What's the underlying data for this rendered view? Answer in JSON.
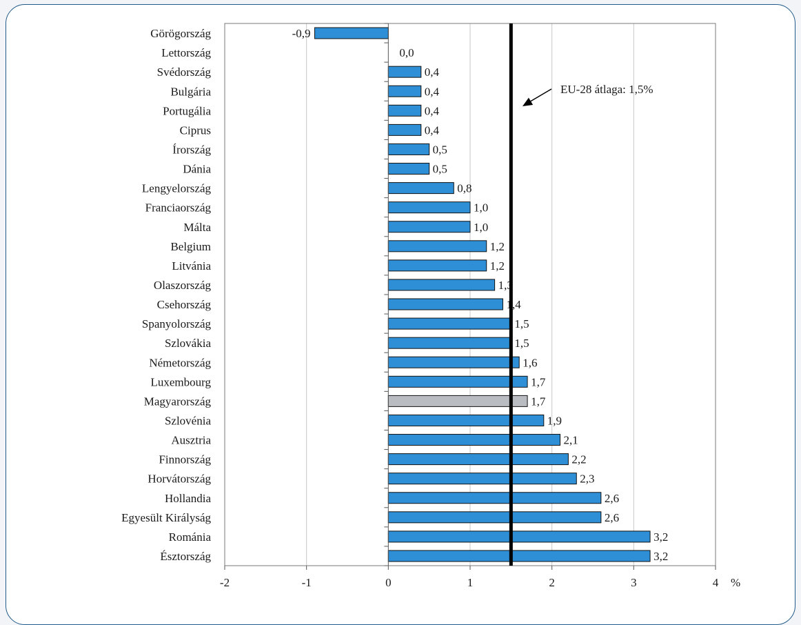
{
  "chart_data": {
    "type": "bar",
    "orientation": "horizontal",
    "categories": [
      "Görögország",
      "Lettország",
      "Svédország",
      "Bulgária",
      "Portugália",
      "Ciprus",
      "Írország",
      "Dánia",
      "Lengyelország",
      "Franciaország",
      "Málta",
      "Belgium",
      "Litvánia",
      "Olaszország",
      "Csehország",
      "Spanyolország",
      "Szlovákia",
      "Németország",
      "Luxembourg",
      "Magyarország",
      "Szlovénia",
      "Ausztria",
      "Finnország",
      "Horvátország",
      "Hollandia",
      "Egyesült Királyság",
      "Románia",
      "Észtország"
    ],
    "values": [
      -0.9,
      0.0,
      0.4,
      0.4,
      0.4,
      0.4,
      0.5,
      0.5,
      0.8,
      1.0,
      1.0,
      1.2,
      1.2,
      1.3,
      1.4,
      1.5,
      1.5,
      1.6,
      1.7,
      1.7,
      1.9,
      2.1,
      2.2,
      2.3,
      2.6,
      2.6,
      3.2,
      3.2
    ],
    "value_labels": [
      "-0,9",
      "0,0",
      "0,4",
      "0,4",
      "0,4",
      "0,4",
      "0,5",
      "0,5",
      "0,8",
      "1,0",
      "1,0",
      "1,2",
      "1,2",
      "1,3",
      "1,4",
      "1,5",
      "1,5",
      "1,6",
      "1,7",
      "1,7",
      "1,9",
      "2,1",
      "2,2",
      "2,3",
      "2,6",
      "2,6",
      "3,2",
      "3,2"
    ],
    "highlight_category": "Magyarország",
    "xlim": [
      -2,
      4
    ],
    "xticks": [
      -2,
      -1,
      0,
      1,
      2,
      3,
      4
    ],
    "xtick_labels": [
      "-2",
      "-1",
      "0",
      "1",
      "2",
      "3",
      "4"
    ],
    "x_unit": "%",
    "reference_line": {
      "value": 1.5,
      "label": "EU-28 átlaga: 1,5%"
    },
    "grid": "vertical",
    "colors": {
      "bar": "#2e8fd6",
      "highlight": "#b9bcc0",
      "bar_edge": "#111111",
      "reference": "#000000"
    }
  }
}
